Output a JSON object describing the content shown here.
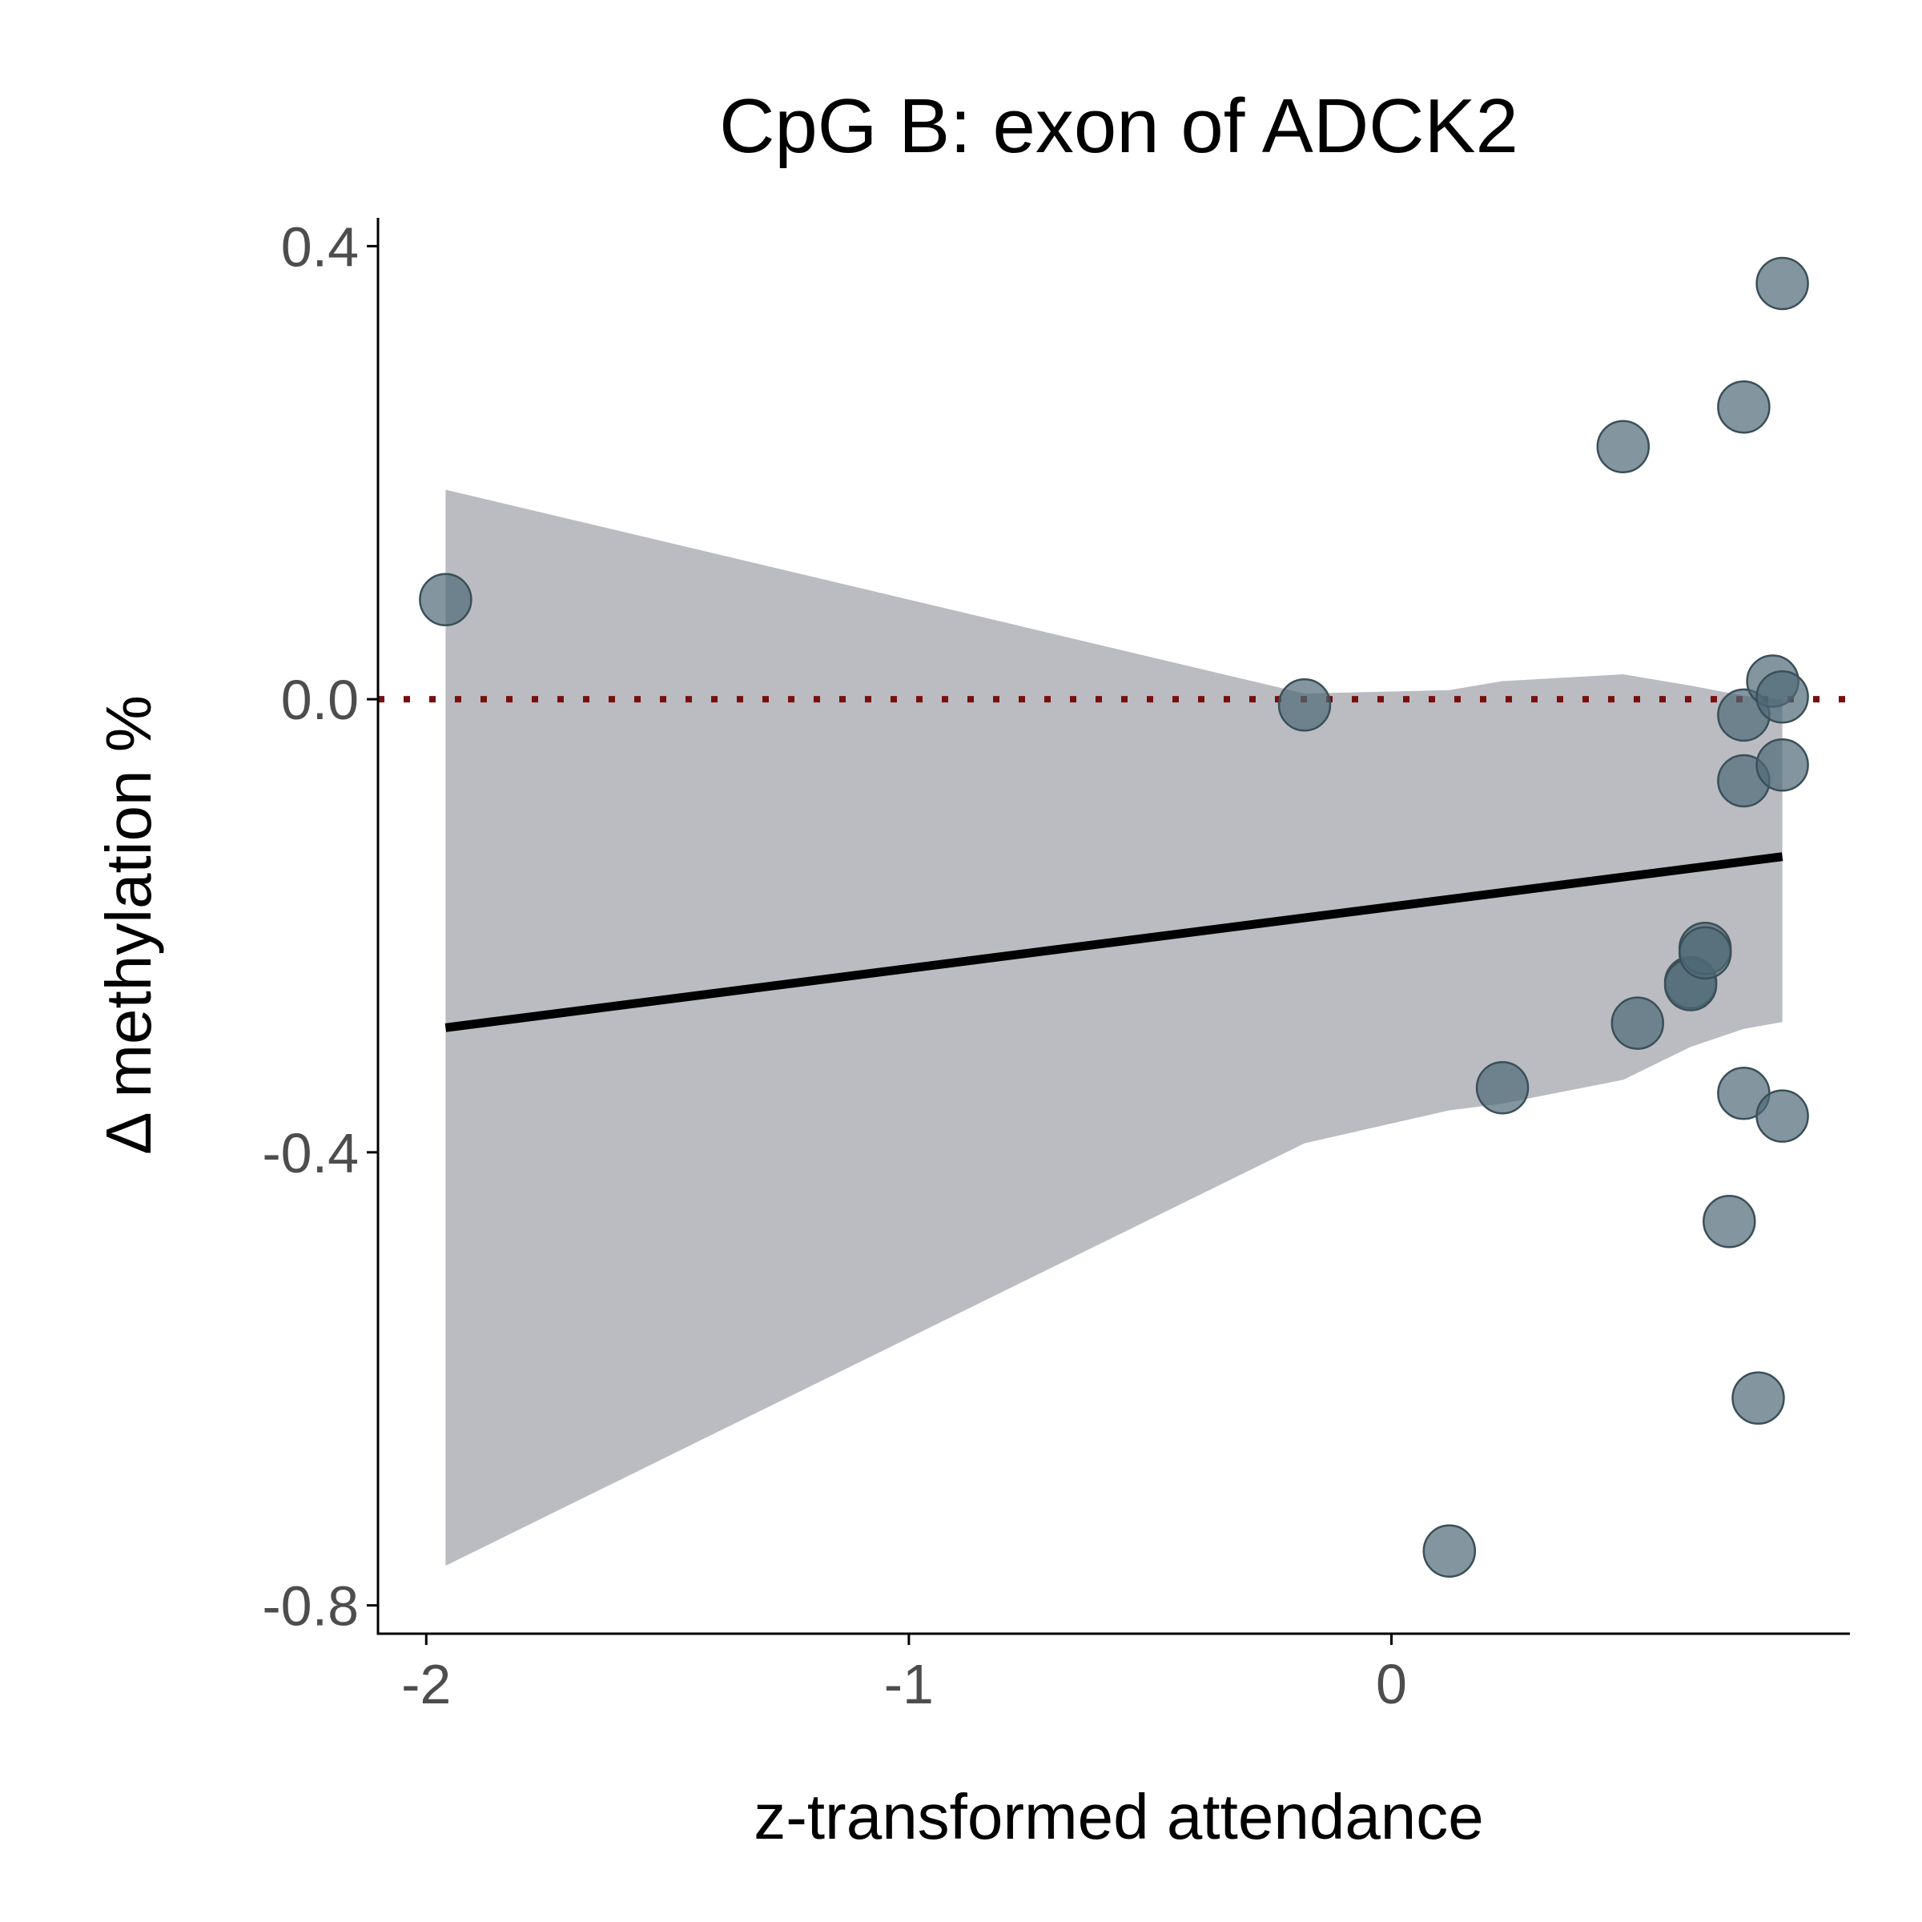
{
  "chart_data": {
    "type": "scatter",
    "title": "CpG B: exon of ADCK2",
    "xlabel": "z-transformed attendance",
    "ylabel": "Δ methylation %",
    "xlim": [
      -2.1,
      0.95
    ],
    "ylim": [
      -0.825,
      0.425
    ],
    "x_ticks": [
      {
        "value": -2,
        "label": "-2"
      },
      {
        "value": -1,
        "label": "-1"
      },
      {
        "value": 0,
        "label": "0"
      }
    ],
    "y_ticks": [
      {
        "value": 0.4,
        "label": "0.4"
      },
      {
        "value": 0.0,
        "label": "0.0"
      },
      {
        "value": -0.4,
        "label": "-0.4"
      },
      {
        "value": -0.8,
        "label": "-0.8"
      }
    ],
    "grid": false,
    "points": [
      {
        "x": -1.96,
        "y": 0.088
      },
      {
        "x": -0.18,
        "y": -0.005
      },
      {
        "x": 0.12,
        "y": -0.752
      },
      {
        "x": 0.23,
        "y": -0.343
      },
      {
        "x": 0.48,
        "y": 0.223
      },
      {
        "x": 0.51,
        "y": -0.286
      },
      {
        "x": 0.62,
        "y": -0.25
      },
      {
        "x": 0.62,
        "y": -0.252
      },
      {
        "x": 0.65,
        "y": -0.22
      },
      {
        "x": 0.65,
        "y": -0.224
      },
      {
        "x": 0.7,
        "y": -0.461
      },
      {
        "x": 0.73,
        "y": 0.258
      },
      {
        "x": 0.73,
        "y": -0.014
      },
      {
        "x": 0.73,
        "y": -0.072
      },
      {
        "x": 0.73,
        "y": -0.348
      },
      {
        "x": 0.76,
        "y": -0.617
      },
      {
        "x": 0.79,
        "y": 0.016
      },
      {
        "x": 0.81,
        "y": 0.367
      },
      {
        "x": 0.81,
        "y": 0.002
      },
      {
        "x": 0.81,
        "y": -0.058
      },
      {
        "x": 0.81,
        "y": -0.368
      }
    ],
    "fit_line": {
      "x": [
        -1.96,
        0.81
      ],
      "y": [
        -0.29,
        -0.139
      ]
    },
    "confidence_band": {
      "x": [
        -1.96,
        -0.18,
        0.12,
        0.23,
        0.48,
        0.62,
        0.73,
        0.81
      ],
      "upper": [
        0.185,
        0.005,
        0.008,
        0.016,
        0.022,
        0.012,
        0.003,
        0.0
      ],
      "lower": [
        -0.765,
        -0.392,
        -0.363,
        -0.357,
        -0.336,
        -0.307,
        -0.291,
        -0.285
      ]
    },
    "reference_line": {
      "y": 0.0,
      "style": "dotted"
    },
    "colors": {
      "points": "#4f6a76",
      "point_stroke": "#3b4f58",
      "fit_line": "#000000",
      "band": "#a9abb1",
      "reference_line": "#7a0e0e",
      "axis": "#000000"
    }
  }
}
